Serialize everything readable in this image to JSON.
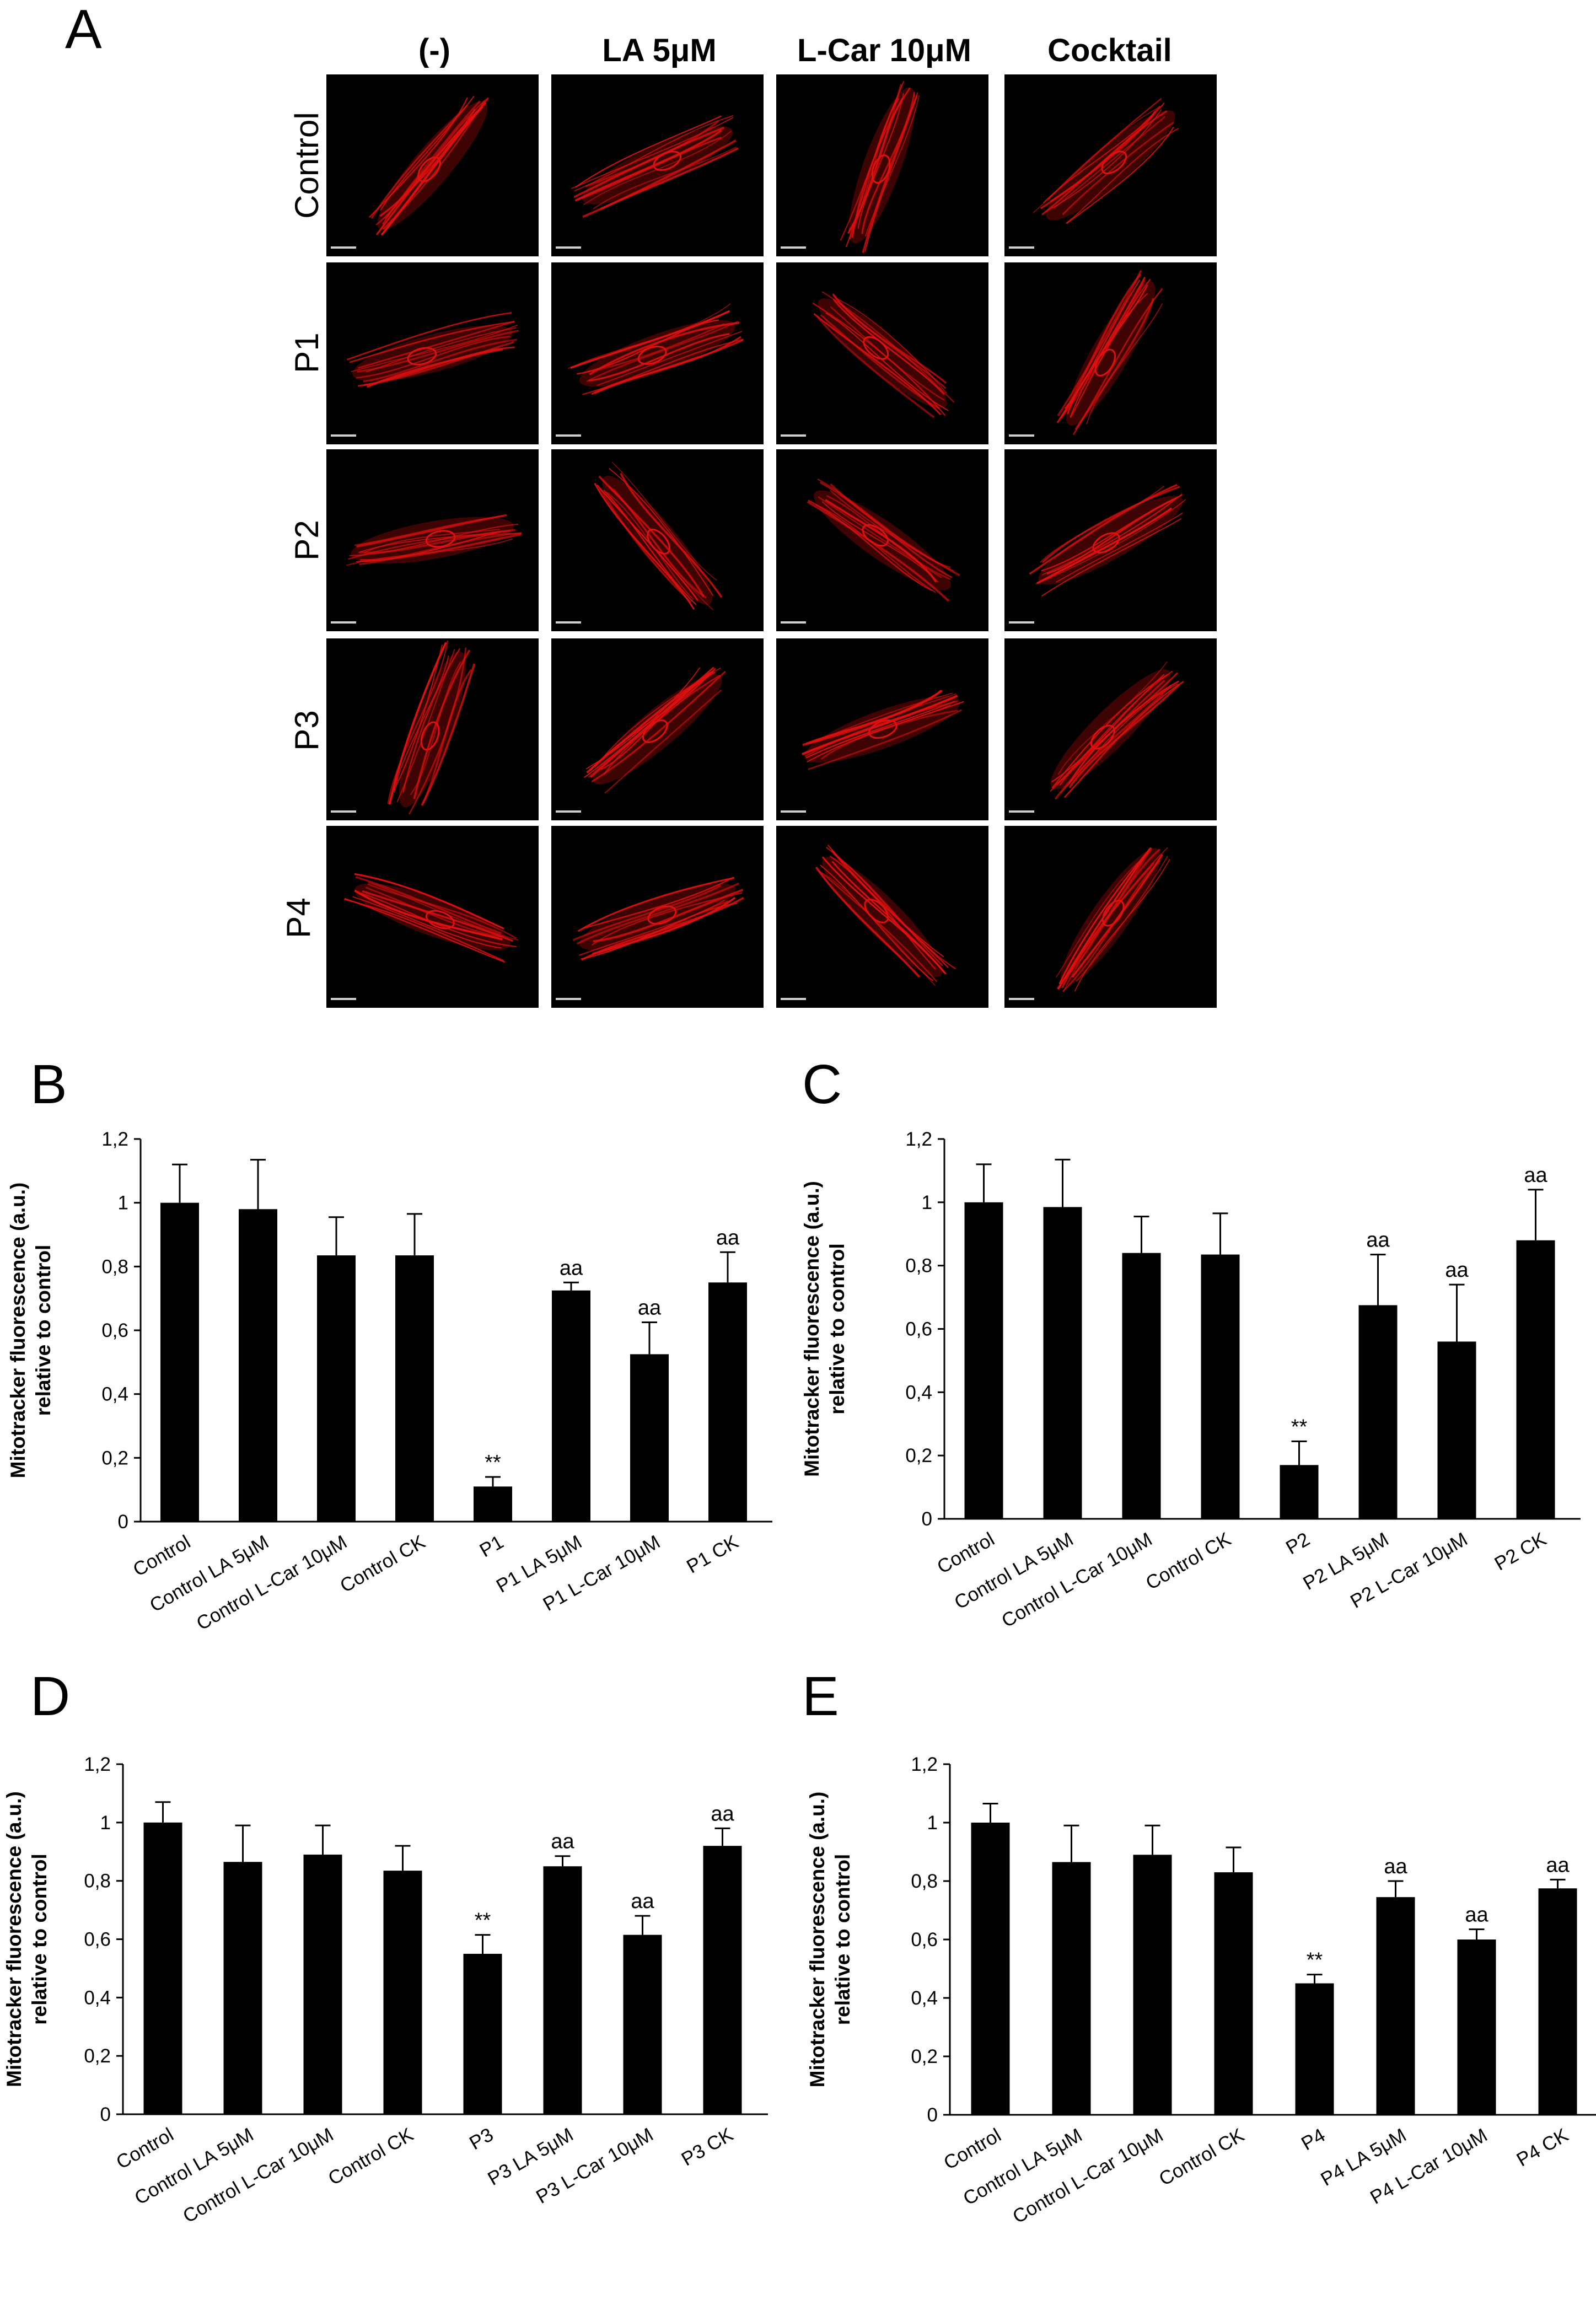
{
  "figure": {
    "panel_a": {
      "letter": "A",
      "columns": [
        "(-)",
        "LA 5μM",
        "L-Car 10μM",
        "Cocktail"
      ],
      "rows": [
        "Control",
        "P1",
        "P2",
        "P3",
        "P4"
      ]
    }
  },
  "colors": {
    "bar": "#000000",
    "micrograph_bg": "#000000",
    "mito_stain": "#e01010"
  },
  "chart_data": [
    {
      "panel": "B",
      "type": "bar",
      "ylabel": [
        "Mitotracker fluorescence (a.u.)",
        "relative to control"
      ],
      "ylim": [
        0,
        1.2
      ],
      "yticks": [
        "0",
        "0,2",
        "0,4",
        "0,6",
        "0,8",
        "1",
        "1,2"
      ],
      "categories": [
        "Control",
        "Control LA 5μM",
        "Control L-Car 10μM",
        "Control CK",
        "P1",
        "P1 LA 5μM",
        "P1 L-Car 10μM",
        "P1 CK"
      ],
      "values": [
        1.0,
        0.98,
        0.835,
        0.835,
        0.11,
        0.725,
        0.525,
        0.75
      ],
      "errors": [
        0.12,
        0.155,
        0.12,
        0.13,
        0.03,
        0.025,
        0.1,
        0.095
      ],
      "annotations": [
        "",
        "",
        "",
        "",
        "**",
        "aa",
        "aa",
        "aa"
      ]
    },
    {
      "panel": "C",
      "type": "bar",
      "ylabel": [
        "Mitotracker fluorescence (a.u.)",
        "relative to control"
      ],
      "ylim": [
        0,
        1.2
      ],
      "yticks": [
        "0",
        "0,2",
        "0,4",
        "0,6",
        "0,8",
        "1",
        "1,2"
      ],
      "categories": [
        "Control",
        "Control LA 5μM",
        "Control L-Car 10μM",
        "Control CK",
        "P2",
        "P2 LA 5μM",
        "P2 L-Car 10μM",
        "P2 CK"
      ],
      "values": [
        1.0,
        0.985,
        0.84,
        0.835,
        0.17,
        0.675,
        0.56,
        0.88
      ],
      "errors": [
        0.12,
        0.15,
        0.115,
        0.13,
        0.075,
        0.16,
        0.18,
        0.16
      ],
      "annotations": [
        "",
        "",
        "",
        "",
        "**",
        "aa",
        "aa",
        "aa"
      ]
    },
    {
      "panel": "D",
      "type": "bar",
      "ylabel": [
        "Mitotracker fluorescence (a.u.)",
        "relative to control"
      ],
      "ylim": [
        0,
        1.2
      ],
      "yticks": [
        "0",
        "0,2",
        "0,4",
        "0,6",
        "0,8",
        "1",
        "1,2"
      ],
      "categories": [
        "Control",
        "Control LA 5μM",
        "Control L-Car 10μM",
        "Control CK",
        "P3",
        "P3 LA 5μM",
        "P3 L-Car 10μM",
        "P3 CK"
      ],
      "values": [
        1.0,
        0.865,
        0.89,
        0.835,
        0.55,
        0.85,
        0.615,
        0.92
      ],
      "errors": [
        0.07,
        0.125,
        0.1,
        0.085,
        0.065,
        0.035,
        0.065,
        0.06
      ],
      "annotations": [
        "",
        "",
        "",
        "",
        "**",
        "aa",
        "aa",
        "aa"
      ]
    },
    {
      "panel": "E",
      "type": "bar",
      "ylabel": [
        "Mitotracker fluorescence (a.u.)",
        "relative to control"
      ],
      "ylim": [
        0,
        1.2
      ],
      "yticks": [
        "0",
        "0,2",
        "0,4",
        "0,6",
        "0,8",
        "1",
        "1,2"
      ],
      "categories": [
        "Control",
        "Control LA 5μM",
        "Control L-Car 10μM",
        "Control CK",
        "P4",
        "P4 LA 5μM",
        "P4 L-Car 10μM",
        "P4 CK"
      ],
      "values": [
        1.0,
        0.865,
        0.89,
        0.83,
        0.45,
        0.745,
        0.6,
        0.775
      ],
      "errors": [
        0.065,
        0.125,
        0.1,
        0.085,
        0.03,
        0.055,
        0.035,
        0.03
      ],
      "annotations": [
        "",
        "",
        "",
        "",
        "**",
        "aa",
        "aa",
        "aa"
      ]
    }
  ]
}
